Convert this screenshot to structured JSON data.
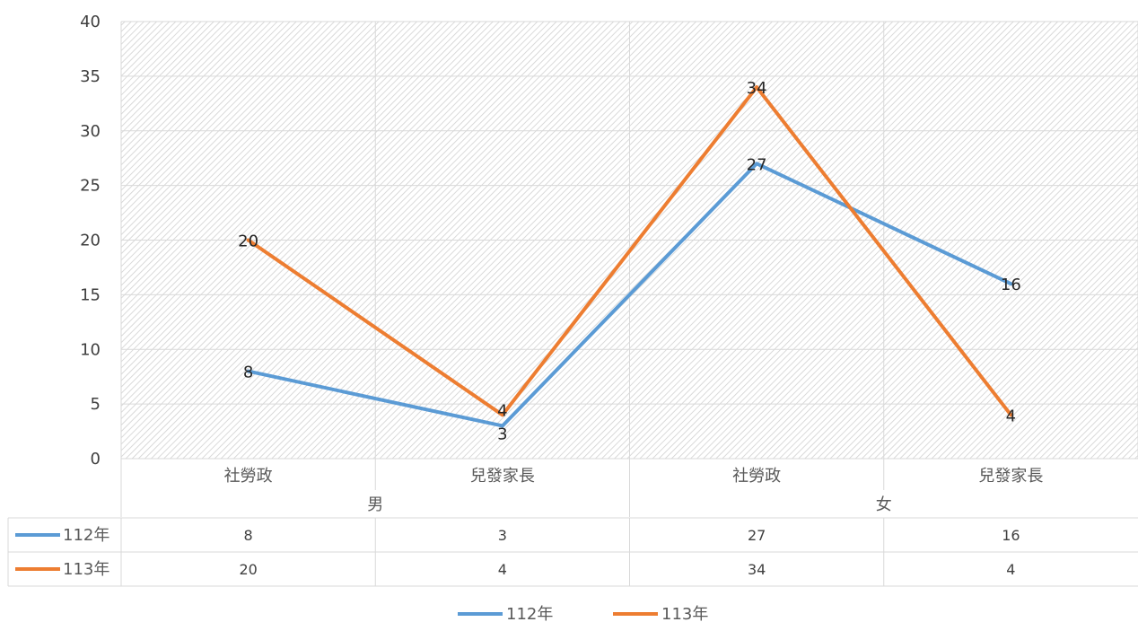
{
  "chart_data": {
    "type": "line",
    "ylim": [
      0,
      40
    ],
    "yticks": [
      "0",
      "5",
      "10",
      "15",
      "20",
      "25",
      "30",
      "35",
      "40"
    ],
    "categories": [
      "社勞政",
      "兒發家長",
      "社勞政",
      "兒發家長"
    ],
    "groups": [
      {
        "label": "男",
        "span": 2
      },
      {
        "label": "女",
        "span": 2
      }
    ],
    "series": [
      {
        "name": "112年",
        "color": "#5B9BD5",
        "values": [
          8,
          3,
          27,
          16
        ]
      },
      {
        "name": "113年",
        "color": "#ED7D31",
        "values": [
          20,
          4,
          34,
          4
        ]
      }
    ],
    "data_table": true,
    "legend_position": "bottom",
    "grid": true
  }
}
